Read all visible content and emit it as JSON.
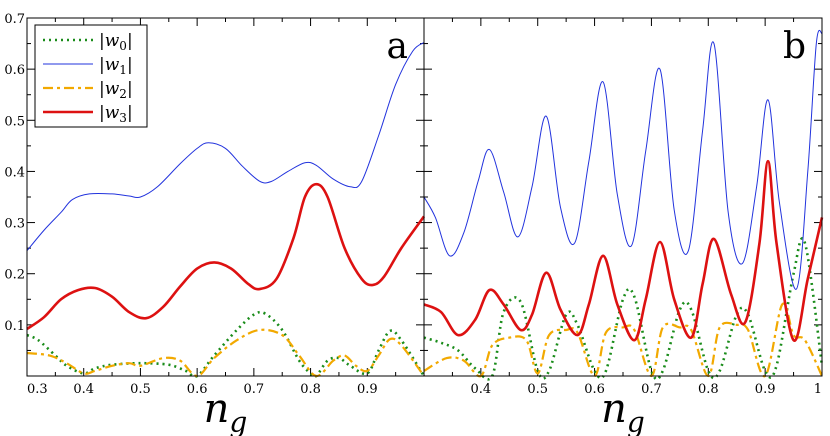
{
  "chart_data": [
    {
      "type": "line",
      "panel_label": "a",
      "xlabel": "n_g",
      "xlim": [
        0.3,
        1.0
      ],
      "ylim": [
        0.0,
        0.7
      ],
      "xticks": [
        "0.3",
        "0.4",
        "0.5",
        "0.6",
        "0.7",
        "0.8",
        "0.9"
      ],
      "yticks": [
        "0.1",
        "0.2",
        "0.3",
        "0.4",
        "0.5",
        "0.6",
        "0.7"
      ],
      "legend": {
        "position": "top-left",
        "entries": [
          "|w0|",
          "|w1|",
          "|w2|",
          "|w3|"
        ]
      },
      "series": [
        {
          "name": "|w0|",
          "color": "#1a8c1a",
          "style": "dotted",
          "x": [
            0.3,
            0.32,
            0.35,
            0.37,
            0.4,
            0.42,
            0.45,
            0.5,
            0.55,
            0.58,
            0.6,
            0.63,
            0.67,
            0.7,
            0.72,
            0.75,
            0.78,
            0.8,
            0.81,
            0.83,
            0.85,
            0.87,
            0.9,
            0.92,
            0.94,
            0.96,
            1.0
          ],
          "y": [
            0.08,
            0.07,
            0.04,
            0.02,
            0.005,
            0.015,
            0.022,
            0.025,
            0.022,
            0.01,
            0.0,
            0.04,
            0.09,
            0.12,
            0.122,
            0.09,
            0.03,
            0.005,
            0.0,
            0.03,
            0.035,
            0.02,
            0.005,
            0.05,
            0.088,
            0.07,
            0.0
          ]
        },
        {
          "name": "|w1|",
          "color": "#2233dd",
          "style": "solid",
          "x": [
            0.3,
            0.33,
            0.36,
            0.38,
            0.41,
            0.45,
            0.48,
            0.5,
            0.53,
            0.57,
            0.6,
            0.62,
            0.65,
            0.68,
            0.71,
            0.73,
            0.76,
            0.79,
            0.81,
            0.84,
            0.87,
            0.89,
            0.92,
            0.95,
            0.98,
            1.0
          ],
          "y": [
            0.245,
            0.285,
            0.32,
            0.345,
            0.356,
            0.356,
            0.352,
            0.35,
            0.37,
            0.415,
            0.445,
            0.456,
            0.445,
            0.41,
            0.381,
            0.38,
            0.4,
            0.417,
            0.412,
            0.385,
            0.37,
            0.38,
            0.47,
            0.57,
            0.635,
            0.652
          ]
        },
        {
          "name": "|w2|",
          "color": "#f2a900",
          "style": "dashed",
          "x": [
            0.3,
            0.34,
            0.37,
            0.4,
            0.42,
            0.45,
            0.48,
            0.5,
            0.54,
            0.57,
            0.6,
            0.63,
            0.67,
            0.71,
            0.75,
            0.78,
            0.81,
            0.84,
            0.86,
            0.88,
            0.9,
            0.92,
            0.94,
            0.96,
            1.0
          ],
          "y": [
            0.045,
            0.04,
            0.025,
            0.005,
            0.01,
            0.02,
            0.025,
            0.02,
            0.035,
            0.03,
            0.0,
            0.035,
            0.07,
            0.09,
            0.08,
            0.04,
            0.0,
            0.03,
            0.04,
            0.02,
            0.01,
            0.04,
            0.072,
            0.06,
            0.0
          ]
        },
        {
          "name": "|w3|",
          "color": "#dd1111",
          "style": "solid",
          "x": [
            0.3,
            0.33,
            0.36,
            0.39,
            0.42,
            0.45,
            0.48,
            0.51,
            0.54,
            0.57,
            0.6,
            0.63,
            0.66,
            0.69,
            0.71,
            0.74,
            0.77,
            0.79,
            0.81,
            0.83,
            0.86,
            0.89,
            0.91,
            0.93,
            0.96,
            1.0
          ],
          "y": [
            0.092,
            0.115,
            0.15,
            0.168,
            0.172,
            0.155,
            0.125,
            0.113,
            0.135,
            0.175,
            0.21,
            0.222,
            0.21,
            0.18,
            0.17,
            0.19,
            0.27,
            0.35,
            0.375,
            0.35,
            0.25,
            0.19,
            0.178,
            0.195,
            0.25,
            0.312
          ]
        }
      ]
    },
    {
      "type": "line",
      "panel_label": "b",
      "xlabel": "n_g",
      "xlim": [
        0.3,
        1.0
      ],
      "ylim": [
        0.0,
        0.7
      ],
      "xticks": [
        "0.4",
        "0.5",
        "0.6",
        "0.7",
        "0.8",
        "0.9",
        "1"
      ],
      "yticks": [
        "0.1",
        "0.2",
        "0.3",
        "0.4",
        "0.5",
        "0.6",
        "0.7"
      ],
      "series": [
        {
          "name": "|w0|",
          "color": "#1a8c1a",
          "style": "dotted",
          "x": [
            0.3,
            0.33,
            0.36,
            0.39,
            0.42,
            0.44,
            0.47,
            0.5,
            0.52,
            0.55,
            0.57,
            0.6,
            0.62,
            0.65,
            0.67,
            0.7,
            0.72,
            0.75,
            0.77,
            0.8,
            0.82,
            0.85,
            0.87,
            0.9,
            0.92,
            0.95,
            0.97,
            1.0
          ],
          "y": [
            0.075,
            0.065,
            0.05,
            0.015,
            0.0,
            0.125,
            0.145,
            0.01,
            0.01,
            0.12,
            0.1,
            0.01,
            0.01,
            0.15,
            0.155,
            0.01,
            0.01,
            0.13,
            0.13,
            0.01,
            0.01,
            0.12,
            0.12,
            0.01,
            0.02,
            0.2,
            0.26,
            0.02
          ]
        },
        {
          "name": "|w1|",
          "color": "#2233dd",
          "style": "solid",
          "x": [
            0.3,
            0.32,
            0.345,
            0.37,
            0.395,
            0.415,
            0.44,
            0.465,
            0.49,
            0.515,
            0.54,
            0.565,
            0.59,
            0.615,
            0.64,
            0.665,
            0.69,
            0.715,
            0.74,
            0.765,
            0.79,
            0.81,
            0.835,
            0.86,
            0.885,
            0.905,
            0.925,
            0.955,
            0.975,
            0.99,
            1.0
          ],
          "y": [
            0.35,
            0.31,
            0.235,
            0.28,
            0.38,
            0.443,
            0.36,
            0.272,
            0.37,
            0.508,
            0.33,
            0.26,
            0.42,
            0.575,
            0.355,
            0.255,
            0.44,
            0.6,
            0.325,
            0.245,
            0.48,
            0.65,
            0.32,
            0.22,
            0.37,
            0.54,
            0.34,
            0.17,
            0.4,
            0.65,
            0.67
          ]
        },
        {
          "name": "|w2|",
          "color": "#f2a900",
          "style": "dashed",
          "x": [
            0.3,
            0.34,
            0.37,
            0.4,
            0.42,
            0.45,
            0.48,
            0.5,
            0.52,
            0.55,
            0.57,
            0.6,
            0.62,
            0.65,
            0.67,
            0.7,
            0.72,
            0.75,
            0.77,
            0.8,
            0.82,
            0.85,
            0.87,
            0.9,
            0.93,
            0.95,
            0.97,
            1.0
          ],
          "y": [
            0.01,
            0.035,
            0.03,
            0.0,
            0.06,
            0.075,
            0.07,
            0.005,
            0.08,
            0.09,
            0.085,
            0.0,
            0.085,
            0.095,
            0.09,
            0.0,
            0.095,
            0.095,
            0.09,
            0.0,
            0.095,
            0.1,
            0.09,
            0.0,
            0.14,
            0.08,
            0.07,
            0.0
          ]
        },
        {
          "name": "|w3|",
          "color": "#dd1111",
          "style": "solid",
          "x": [
            0.3,
            0.33,
            0.36,
            0.39,
            0.415,
            0.44,
            0.47,
            0.49,
            0.515,
            0.54,
            0.57,
            0.59,
            0.615,
            0.64,
            0.67,
            0.69,
            0.715,
            0.74,
            0.77,
            0.79,
            0.81,
            0.84,
            0.865,
            0.89,
            0.905,
            0.92,
            0.95,
            0.975,
            1.0
          ],
          "y": [
            0.14,
            0.125,
            0.08,
            0.11,
            0.168,
            0.14,
            0.09,
            0.12,
            0.202,
            0.13,
            0.08,
            0.14,
            0.235,
            0.14,
            0.07,
            0.15,
            0.262,
            0.15,
            0.075,
            0.18,
            0.268,
            0.16,
            0.105,
            0.26,
            0.42,
            0.26,
            0.07,
            0.19,
            0.31
          ]
        }
      ]
    }
  ]
}
